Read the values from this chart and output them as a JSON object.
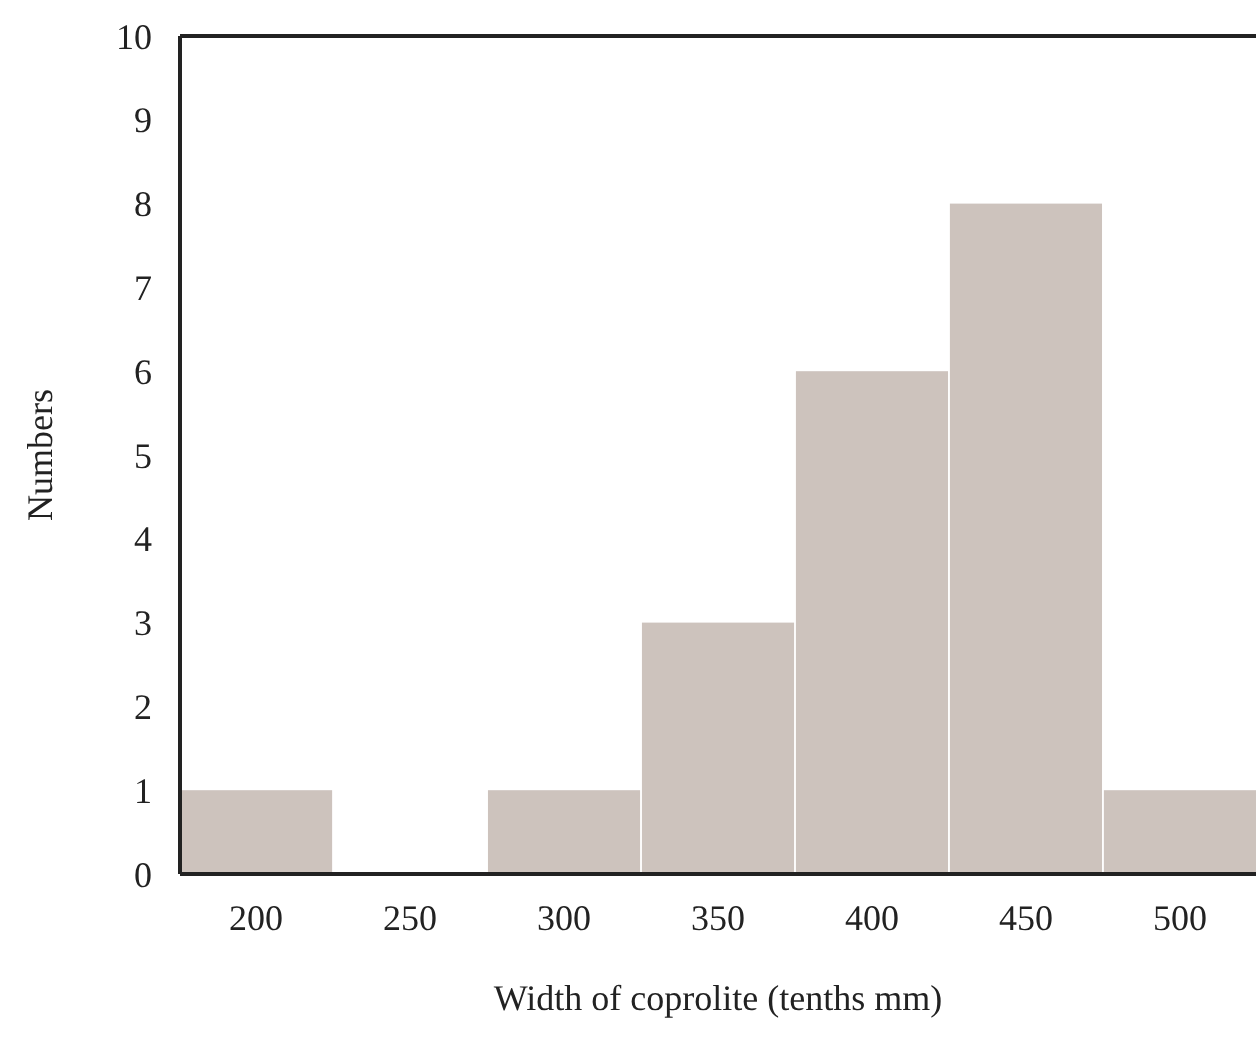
{
  "chart_data": {
    "type": "bar",
    "xlabel": "Width of coprolite (tenths mm)",
    "ylabel": "Numbers",
    "categories": [
      "200",
      "250",
      "300",
      "350",
      "400",
      "450",
      "500"
    ],
    "values": [
      1,
      0,
      1,
      3,
      6,
      8,
      1
    ],
    "color": "#cdc3bd",
    "ylim": [
      0,
      10
    ],
    "yticks": [
      0,
      1,
      2,
      3,
      4,
      5,
      6,
      7,
      8,
      9,
      10
    ],
    "grid": false
  }
}
